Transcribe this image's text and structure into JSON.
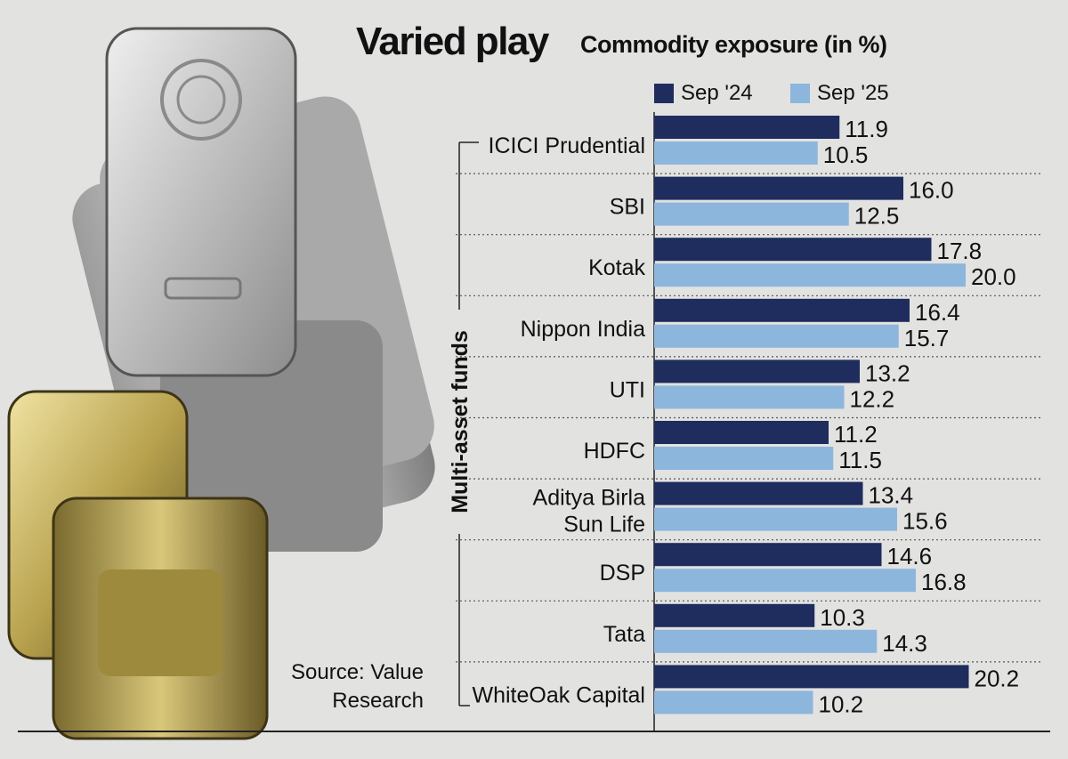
{
  "header": {
    "title": "Varied play",
    "subtitle": "Commodity exposure (in %)"
  },
  "source": {
    "line1": "Source: Value",
    "line2": "Research"
  },
  "colors": {
    "dark": "#1f2c5e",
    "light": "#8db6dc",
    "background": "#e2e2e1"
  },
  "chart_data": {
    "type": "bar",
    "orientation": "horizontal",
    "title": "Varied play",
    "subtitle": "Commodity exposure (in %)",
    "group_label": "Multi-asset funds",
    "legend_position": "top",
    "grid": false,
    "xlim": [
      0,
      22
    ],
    "categories": [
      "ICICI Prudential",
      "SBI",
      "Kotak",
      "Nippon India",
      "UTI",
      "HDFC",
      "Aditya Birla Sun Life",
      "DSP",
      "Tata",
      "WhiteOak Capital"
    ],
    "category_lines": [
      [
        "ICICI Prudential"
      ],
      [
        "SBI"
      ],
      [
        "Kotak"
      ],
      [
        "Nippon India"
      ],
      [
        "UTI"
      ],
      [
        "HDFC"
      ],
      [
        "Aditya Birla",
        "Sun Life"
      ],
      [
        "DSP"
      ],
      [
        "Tata"
      ],
      [
        "WhiteOak Capital"
      ]
    ],
    "series": [
      {
        "name": "Sep '24",
        "color": "#1f2c5e",
        "values": [
          11.9,
          16.0,
          17.8,
          16.4,
          13.2,
          11.2,
          13.4,
          14.6,
          10.3,
          20.2
        ]
      },
      {
        "name": "Sep '25",
        "color": "#8db6dc",
        "values": [
          10.5,
          12.5,
          20.0,
          15.7,
          12.2,
          11.5,
          15.6,
          16.8,
          14.3,
          10.2
        ]
      }
    ]
  }
}
